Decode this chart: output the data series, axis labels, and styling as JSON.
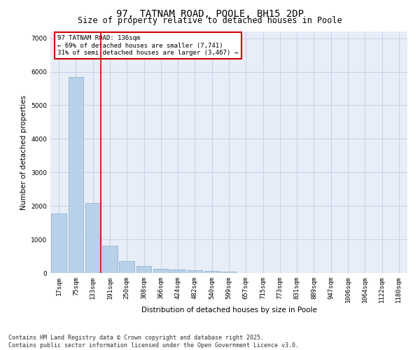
{
  "title": "97, TATNAM ROAD, POOLE, BH15 2DP",
  "subtitle": "Size of property relative to detached houses in Poole",
  "xlabel": "Distribution of detached houses by size in Poole",
  "ylabel": "Number of detached properties",
  "categories": [
    "17sqm",
    "75sqm",
    "133sqm",
    "191sqm",
    "250sqm",
    "308sqm",
    "366sqm",
    "424sqm",
    "482sqm",
    "540sqm",
    "599sqm",
    "657sqm",
    "715sqm",
    "773sqm",
    "831sqm",
    "889sqm",
    "947sqm",
    "1006sqm",
    "1064sqm",
    "1122sqm",
    "1180sqm"
  ],
  "values": [
    1780,
    5850,
    2090,
    820,
    365,
    210,
    130,
    100,
    80,
    65,
    50,
    0,
    0,
    0,
    0,
    0,
    0,
    0,
    0,
    0,
    0
  ],
  "bar_color": "#b8d0e8",
  "bar_edge_color": "#8aafc8",
  "reference_line_color": "#cc0000",
  "annotation_text": "97 TATNAM ROAD: 136sqm\n← 69% of detached houses are smaller (7,741)\n31% of semi-detached houses are larger (3,467) →",
  "annotation_box_color": "#cc0000",
  "ylim": [
    0,
    7200
  ],
  "yticks": [
    0,
    1000,
    2000,
    3000,
    4000,
    5000,
    6000,
    7000
  ],
  "background_color": "#e8eef8",
  "grid_color": "#c8d4e8",
  "footer_line1": "Contains HM Land Registry data © Crown copyright and database right 2025.",
  "footer_line2": "Contains public sector information licensed under the Open Government Licence v3.0.",
  "title_fontsize": 10,
  "subtitle_fontsize": 8.5,
  "axis_label_fontsize": 7.5,
  "tick_fontsize": 6.5,
  "footer_fontsize": 6
}
